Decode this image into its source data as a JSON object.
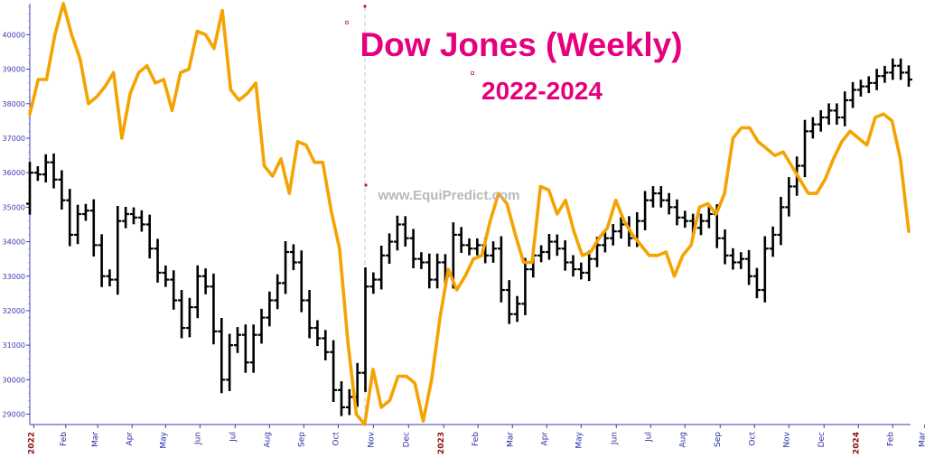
{
  "chart_data": {
    "type": "ohlc",
    "title": "Dow Jones (Weekly)",
    "subtitle": "2022-2024",
    "watermark": "www.EquiPredict.com",
    "ylim": [
      28700,
      40900
    ],
    "yticks": [
      29000,
      30000,
      31000,
      32000,
      33000,
      34000,
      35000,
      36000,
      37000,
      38000,
      39000,
      40000
    ],
    "grid": false,
    "x_labels": [
      {
        "label": "2022",
        "week": 0.5,
        "year": true
      },
      {
        "label": "Feb",
        "week": 4.5
      },
      {
        "label": "Mar",
        "week": 8.5
      },
      {
        "label": "Apr",
        "week": 12.8
      },
      {
        "label": "May",
        "week": 17
      },
      {
        "label": "Jun",
        "week": 21.3
      },
      {
        "label": "Jul",
        "week": 25.7
      },
      {
        "label": "Aug",
        "week": 30
      },
      {
        "label": "Sep",
        "week": 34.3
      },
      {
        "label": "Oct",
        "week": 38.6
      },
      {
        "label": "Nov",
        "week": 43
      },
      {
        "label": "Dec",
        "week": 47.4
      },
      {
        "label": "2023",
        "week": 51.8,
        "year": true
      },
      {
        "label": "Feb",
        "week": 56.1
      },
      {
        "label": "Mar",
        "week": 60.4
      },
      {
        "label": "Apr",
        "week": 64.7
      },
      {
        "label": "May",
        "week": 69
      },
      {
        "label": "Jun",
        "week": 73.4
      },
      {
        "label": "Jul",
        "week": 77.7
      },
      {
        "label": "Aug",
        "week": 82
      },
      {
        "label": "Sep",
        "week": 86.4
      },
      {
        "label": "Oct",
        "week": 90.7
      },
      {
        "label": "Nov",
        "week": 95
      },
      {
        "label": "Dec",
        "week": 99.4
      },
      {
        "label": "2024",
        "week": 103.7,
        "year": true
      },
      {
        "label": "Feb",
        "week": 108
      },
      {
        "label": "Mar",
        "week": 112
      }
    ],
    "weekly_close": [
      36000,
      35950,
      36300,
      35800,
      35200,
      34200,
      34800,
      34900,
      33900,
      33000,
      32900,
      34600,
      34800,
      34700,
      34500,
      33800,
      33100,
      32900,
      32300,
      31500,
      32100,
      33000,
      32700,
      31400,
      30000,
      31000,
      31300,
      30500,
      31300,
      31800,
      32300,
      32800,
      33700,
      33400,
      32300,
      31500,
      31200,
      30800,
      29700,
      29200,
      29500,
      30200,
      32700,
      32900,
      33600,
      34000,
      34500,
      34100,
      33500,
      33400,
      32900,
      33400,
      33000,
      34200,
      33900,
      33800,
      33900,
      33600,
      33800,
      32600,
      31900,
      32200,
      33200,
      33600,
      33700,
      34000,
      33800,
      33400,
      33200,
      33100,
      33500,
      33900,
      34100,
      34300,
      34500,
      34100,
      34600,
      35200,
      35400,
      35200,
      35000,
      34700,
      34600,
      34400,
      34600,
      34800,
      34100,
      33600,
      33400,
      33500,
      33000,
      32600,
      33800,
      34200,
      35000,
      35600,
      36200,
      37200,
      37400,
      37600,
      37800,
      37600,
      38100,
      38400,
      38500,
      38600,
      38800,
      38900,
      39100,
      38900,
      38700
    ],
    "overlay_line": {
      "color": "#f5a300",
      "values": [
        37700,
        38700,
        38700,
        40000,
        40900,
        40000,
        39300,
        38000,
        38200,
        38500,
        38900,
        37000,
        38300,
        38900,
        39100,
        38600,
        38700,
        37800,
        38900,
        39000,
        40100,
        40000,
        39600,
        40700,
        38400,
        38100,
        38300,
        38600,
        36200,
        35900,
        36400,
        35400,
        36900,
        36800,
        36300,
        36300,
        34900,
        33800,
        31100,
        29000,
        28700,
        30300,
        29200,
        29400,
        30100,
        30100,
        29900,
        28800,
        30000,
        31800,
        33200,
        32600,
        33000,
        33500,
        33600,
        34600,
        35400,
        35100,
        34200,
        33400,
        33400,
        35600,
        35500,
        34800,
        35200,
        34300,
        33600,
        33700,
        34100,
        34400,
        35200,
        34600,
        34200,
        33900,
        33600,
        33600,
        33700,
        33000,
        33600,
        33900,
        35000,
        35100,
        34800,
        35400,
        37000,
        37300,
        37300,
        36900,
        36700,
        36500,
        36600,
        36200,
        35800,
        35400,
        35400,
        35800,
        36400,
        36900,
        37200,
        37000,
        36800,
        37600,
        37700,
        37500,
        36400,
        34300
      ]
    }
  }
}
